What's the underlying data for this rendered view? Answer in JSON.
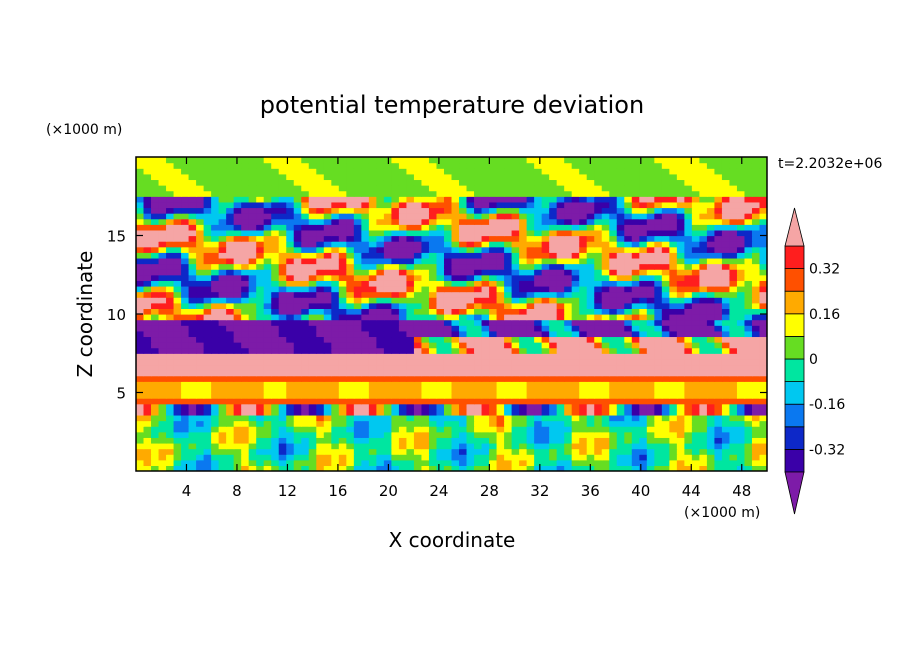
{
  "chart_data": {
    "type": "heatmap",
    "title": "potential temperature deviation",
    "xlabel": "X coordinate",
    "ylabel": "Z coordinate",
    "x_unit": "(×1000 m)",
    "y_unit": "(×1000 m)",
    "time_label": "t=2.2032e+06",
    "xlim": [
      0,
      50
    ],
    "ylim": [
      0,
      20
    ],
    "x_ticks": [
      4,
      8,
      12,
      16,
      20,
      24,
      28,
      32,
      36,
      40,
      44,
      48
    ],
    "y_ticks": [
      5,
      10,
      15
    ],
    "colorbar": {
      "levels": [
        -0.4,
        -0.32,
        -0.24,
        -0.16,
        -0.08,
        0,
        0.08,
        0.16,
        0.24,
        0.32,
        0.4
      ],
      "labels": [
        "0.32",
        "0.16",
        "0",
        "-0.16",
        "-0.32"
      ],
      "label_values": [
        0.32,
        0.16,
        0,
        -0.16,
        -0.32
      ],
      "colors": [
        "#7d1ba8",
        "#3a00a8",
        "#0d28c8",
        "#0a78f0",
        "#00c8f0",
        "#00e6a0",
        "#66dd22",
        "#ffff00",
        "#ffaa00",
        "#ff5000",
        "#ff1e1e",
        "#f5a5a5"
      ]
    },
    "bands": [
      {
        "z_range": [
          0,
          3.5
        ],
        "description_value": "mixed",
        "mean": 0.0
      },
      {
        "z_range": [
          3.5,
          4.2
        ],
        "mean": 0.4
      },
      {
        "z_range": [
          4.2,
          5.8
        ],
        "mean": 0.2
      },
      {
        "z_range": [
          5.8,
          7.5
        ],
        "mean": 0.4
      },
      {
        "z_range": [
          7.5,
          9.5
        ],
        "mean": -0.4
      },
      {
        "z_range": [
          9.5,
          17.5
        ],
        "mean": 0.0
      },
      {
        "z_range": [
          17.5,
          20
        ],
        "mean": 0.05
      }
    ]
  }
}
